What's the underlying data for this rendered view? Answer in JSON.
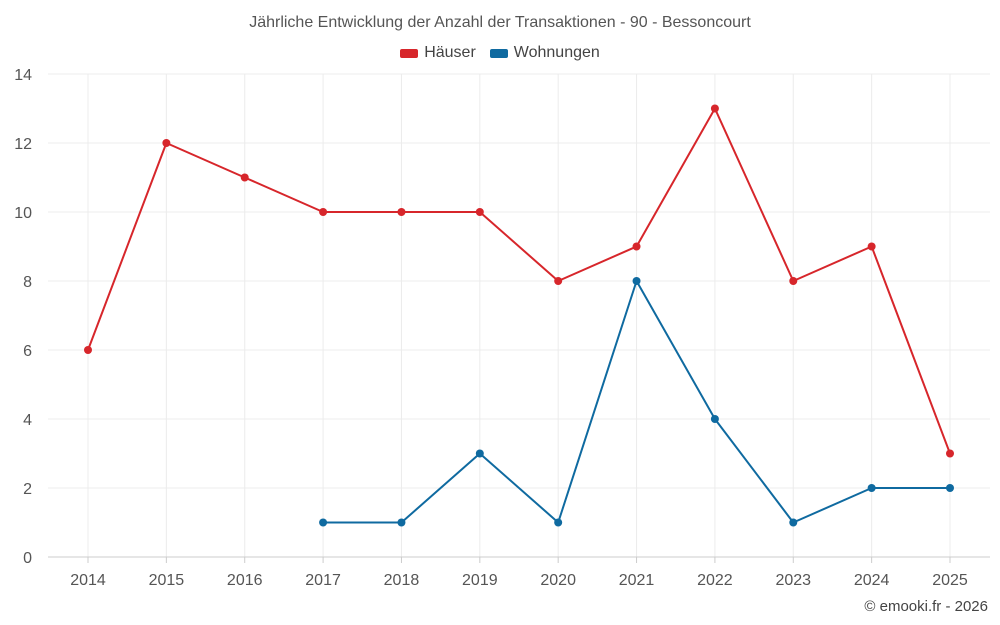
{
  "chart_data": {
    "type": "line",
    "title": "Jährliche Entwicklung der Anzahl der Transaktionen - 90 - Bessoncourt",
    "categories": [
      "2014",
      "2015",
      "2016",
      "2017",
      "2018",
      "2019",
      "2020",
      "2021",
      "2022",
      "2023",
      "2024",
      "2025"
    ],
    "series": [
      {
        "name": "Häuser",
        "color": "#d7262b",
        "values": [
          6,
          12,
          11,
          10,
          10,
          10,
          8,
          9,
          13,
          8,
          9,
          3
        ]
      },
      {
        "name": "Wohnungen",
        "color": "#0f6aa0",
        "values": [
          null,
          null,
          null,
          1,
          1,
          3,
          1,
          8,
          4,
          1,
          2,
          2
        ]
      }
    ],
    "ylim": [
      0,
      14
    ],
    "yticks": [
      0,
      2,
      4,
      6,
      8,
      10,
      12,
      14
    ],
    "xlabel": "",
    "ylabel": "",
    "grid": true,
    "legend_position": "top-center"
  },
  "footer": {
    "credit": "© emooki.fr - 2026"
  }
}
